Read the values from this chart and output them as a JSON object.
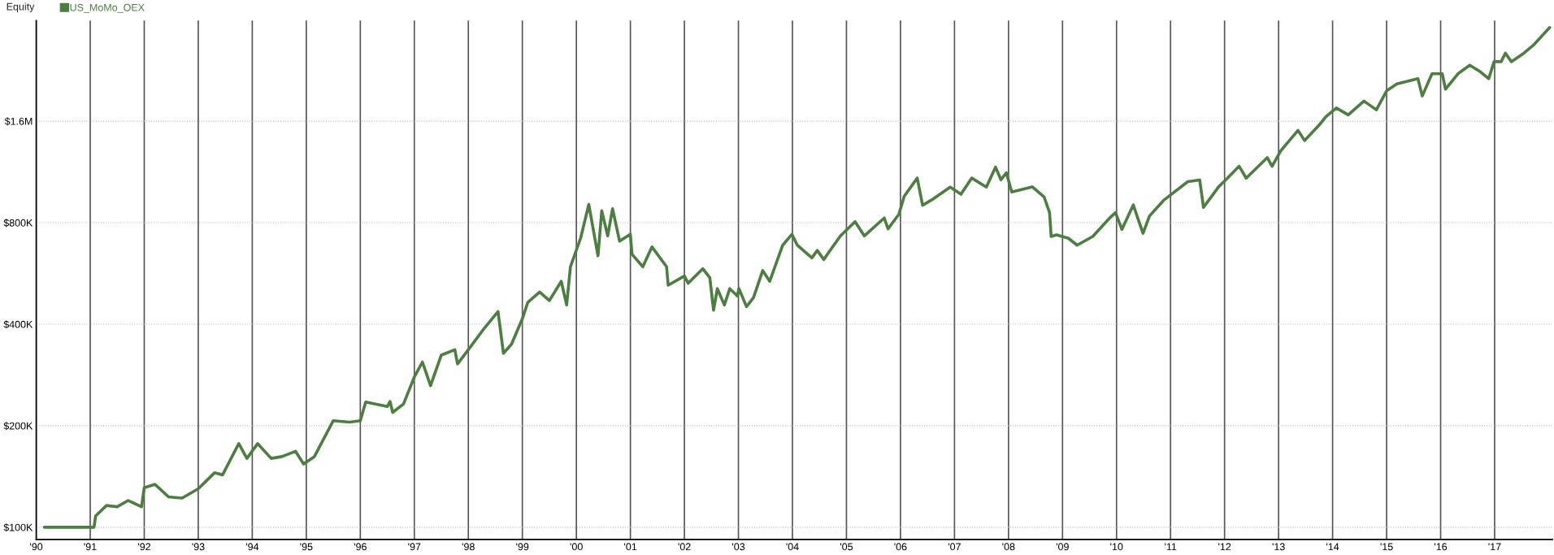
{
  "chart_data": {
    "type": "line",
    "title": "Equity",
    "xlim": [
      1990,
      2018.07
    ],
    "ylim": [
      92000,
      3180000
    ],
    "log": "y",
    "xticks": [
      {
        "value": 1990,
        "label": "'90"
      },
      {
        "value": 1991,
        "label": "'91"
      },
      {
        "value": 1992,
        "label": "'92"
      },
      {
        "value": 1993,
        "label": "'93"
      },
      {
        "value": 1994,
        "label": "'94"
      },
      {
        "value": 1995,
        "label": "'95"
      },
      {
        "value": 1996,
        "label": "'96"
      },
      {
        "value": 1997,
        "label": "'97"
      },
      {
        "value": 1998,
        "label": "'98"
      },
      {
        "value": 1999,
        "label": "'99"
      },
      {
        "value": 2000,
        "label": "'00"
      },
      {
        "value": 2001,
        "label": "'01"
      },
      {
        "value": 2002,
        "label": "'02"
      },
      {
        "value": 2003,
        "label": "'03"
      },
      {
        "value": 2004,
        "label": "'04"
      },
      {
        "value": 2005,
        "label": "'05"
      },
      {
        "value": 2006,
        "label": "'06"
      },
      {
        "value": 2007,
        "label": "'07"
      },
      {
        "value": 2008,
        "label": "'08"
      },
      {
        "value": 2009,
        "label": "'09"
      },
      {
        "value": 2010,
        "label": "'10"
      },
      {
        "value": 2011,
        "label": "'11"
      },
      {
        "value": 2012,
        "label": "'12"
      },
      {
        "value": 2013,
        "label": "'13"
      },
      {
        "value": 2014,
        "label": "'14"
      },
      {
        "value": 2015,
        "label": "'15"
      },
      {
        "value": 2016,
        "label": "'16"
      },
      {
        "value": 2017,
        "label": "'17"
      }
    ],
    "yticks": [
      {
        "value": 100000,
        "label": "$100K"
      },
      {
        "value": 200000,
        "label": "$200K"
      },
      {
        "value": 400000,
        "label": "$400K"
      },
      {
        "value": 800000,
        "label": "$800K"
      },
      {
        "value": 1600000,
        "label": "$1.6M"
      }
    ],
    "grid": true,
    "legend": "top left",
    "line_style": "solid",
    "marker": "none",
    "series": [
      {
        "name": "US_MoMo_OEX",
        "color": "#4b7f3f",
        "x": [
          1990.15,
          1991.07,
          1991.1,
          1991.3,
          1991.5,
          1991.7,
          1991.95,
          1992.0,
          1992.2,
          1992.45,
          1992.7,
          1993.0,
          1993.3,
          1993.45,
          1993.75,
          1993.9,
          1994.1,
          1994.35,
          1994.55,
          1994.8,
          1994.95,
          1995.15,
          1995.5,
          1995.8,
          1996.0,
          1996.1,
          1996.5,
          1996.55,
          1996.6,
          1996.8,
          1997.0,
          1997.15,
          1997.3,
          1997.5,
          1997.75,
          1997.8,
          1998.0,
          1998.3,
          1998.55,
          1998.65,
          1998.8,
          1999.0,
          1999.1,
          1999.32,
          1999.5,
          1999.72,
          1999.82,
          1999.89,
          2000.08,
          2000.23,
          2000.4,
          2000.47,
          2000.58,
          2000.67,
          2000.8,
          2001.0,
          2001.03,
          2001.23,
          2001.4,
          2001.67,
          2001.7,
          2002.0,
          2002.07,
          2002.34,
          2002.47,
          2002.54,
          2002.61,
          2002.74,
          2002.84,
          2002.98,
          2003.01,
          2003.15,
          2003.28,
          2003.45,
          2003.58,
          2003.82,
          2003.99,
          2004.09,
          2004.36,
          2004.46,
          2004.58,
          2004.72,
          2004.89,
          2005.16,
          2005.33,
          2005.7,
          2005.77,
          2005.97,
          2006.07,
          2006.31,
          2006.41,
          2006.58,
          2006.92,
          2007.12,
          2007.32,
          2007.59,
          2007.76,
          2007.86,
          2007.96,
          2008.06,
          2008.44,
          2008.66,
          2008.76,
          2008.79,
          2008.89,
          2009.11,
          2009.27,
          2009.56,
          2009.88,
          2009.98,
          2010.1,
          2010.31,
          2010.49,
          2010.61,
          2010.87,
          2011.03,
          2011.32,
          2011.54,
          2011.61,
          2011.89,
          2012.02,
          2012.27,
          2012.4,
          2012.79,
          2012.88,
          2013.04,
          2013.36,
          2013.48,
          2013.75,
          2013.88,
          2014.07,
          2014.29,
          2014.58,
          2014.81,
          2015.0,
          2015.19,
          2015.58,
          2015.66,
          2015.84,
          2016.03,
          2016.09,
          2016.32,
          2016.54,
          2016.74,
          2016.89,
          2016.99,
          2017.12,
          2017.2,
          2017.31,
          2017.54,
          2017.73,
          2018.02
        ],
        "values": [
          100000,
          100000,
          108000,
          116000,
          115000,
          120000,
          115000,
          131000,
          134000,
          123000,
          122000,
          130000,
          145000,
          143000,
          177000,
          160000,
          177000,
          160000,
          162000,
          168000,
          154000,
          162000,
          207000,
          205000,
          207000,
          235000,
          228000,
          236000,
          219000,
          232000,
          279000,
          309000,
          263000,
          324000,
          336000,
          305000,
          336000,
          390000,
          436000,
          328000,
          349000,
          415000,
          464000,
          498000,
          470000,
          536000,
          456000,
          592000,
          721000,
          906000,
          638000,
          868000,
          731000,
          880000,
          705000,
          739000,
          645000,
          592000,
          678000,
          592000,
          522000,
          556000,
          529000,
          584000,
          550000,
          440000,
          510000,
          456000,
          510000,
          485000,
          510000,
          451000,
          480000,
          577000,
          536000,
          686000,
          739000,
          686000,
          629000,
          662000,
          622000,
          670000,
          731000,
          806000,
          731000,
          826000,
          767000,
          847000,
          958000,
          1085000,
          901000,
          935000,
          1020000,
          971000,
          1085000,
          1020000,
          1169000,
          1072000,
          1125000,
          986000,
          1022000,
          953000,
          857000,
          728000,
          736000,
          719000,
          686000,
          728000,
          828000,
          857000,
          764000,
          903000,
          744000,
          837000,
          931000,
          975000,
          1059000,
          1071000,
          888000,
          1022000,
          1071000,
          1176000,
          1084000,
          1247000,
          1176000,
          1307000,
          1503000,
          1402000,
          1557000,
          1652000,
          1750000,
          1670000,
          1835000,
          1729000,
          1968000,
          2062000,
          2138000,
          1900000,
          2211000,
          2211000,
          1990000,
          2211000,
          2345000,
          2239000,
          2138000,
          2401000,
          2401000,
          2545000,
          2401000,
          2545000,
          2699000,
          3033000
        ]
      }
    ]
  }
}
